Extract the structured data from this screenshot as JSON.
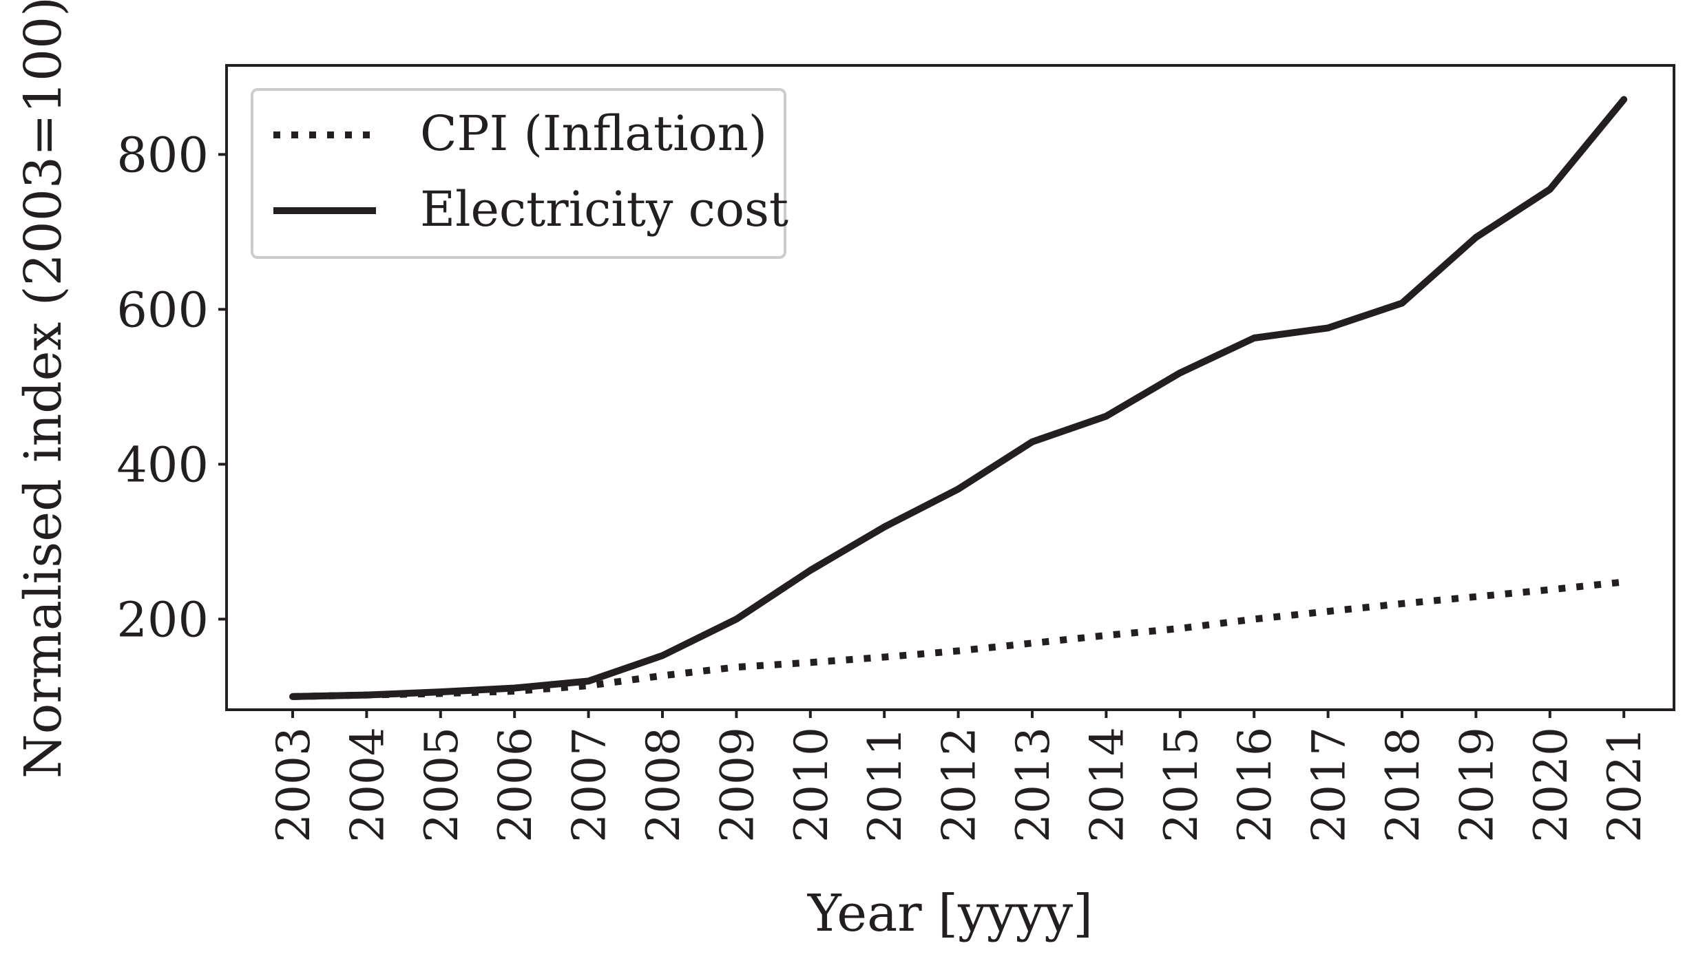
{
  "chart_data": {
    "type": "line",
    "title": "",
    "xlabel": "Year [yyyy]",
    "ylabel": "Normalised index (2003=100)",
    "x": [
      "2003",
      "2004",
      "2005",
      "2006",
      "2007",
      "2008",
      "2009",
      "2010",
      "2011",
      "2012",
      "2013",
      "2014",
      "2015",
      "2016",
      "2017",
      "2018",
      "2019",
      "2020",
      "2021"
    ],
    "ylim": [
      83,
      915
    ],
    "yticks": [
      200,
      400,
      600,
      800
    ],
    "grid": false,
    "legend_position": "top-left",
    "series": [
      {
        "name": "CPI (Inflation)",
        "style": "dotted",
        "values": [
          100,
          102,
          104,
          107,
          114,
          127,
          138,
          144,
          151,
          159,
          169,
          179,
          188,
          200,
          210,
          220,
          229,
          238,
          248
        ]
      },
      {
        "name": "Electricity cost",
        "style": "solid",
        "values": [
          100,
          102,
          106,
          111,
          120,
          153,
          200,
          263,
          319,
          368,
          429,
          462,
          518,
          563,
          576,
          608,
          693,
          755,
          871
        ]
      }
    ]
  },
  "colors": {
    "line": "#231f20",
    "legend_border": "#cccccc"
  }
}
